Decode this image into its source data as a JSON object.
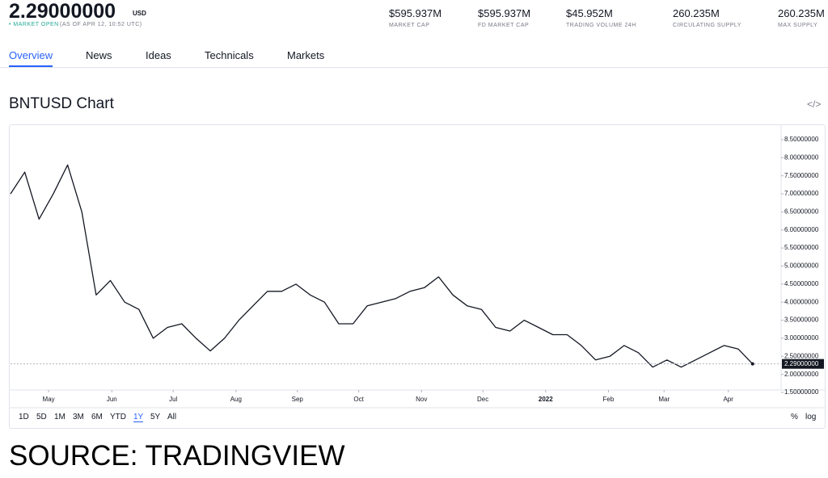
{
  "header": {
    "price": "2.29000000",
    "currency": "USD",
    "status": "• MARKET OPEN",
    "as_of": "(AS OF APR 12, 10:52 UTC)",
    "stats": [
      {
        "value": "$595.937M",
        "label": "MARKET CAP"
      },
      {
        "value": "$595.937M",
        "label": "FD MARKET CAP"
      },
      {
        "value": "$45.952M",
        "label": "TRADING VOLUME 24H"
      },
      {
        "value": "260.235M",
        "label": "CIRCULATING SUPPLY"
      },
      {
        "value": "260.235M",
        "label": "MAX SUPPLY"
      }
    ]
  },
  "tabs": [
    "Overview",
    "News",
    "Ideas",
    "Technicals",
    "Markets"
  ],
  "active_tab": "Overview",
  "embed_icon": "</>",
  "chart_data": {
    "type": "line",
    "title": "BNTUSD Chart",
    "color": "#131722",
    "values": [
      7.0,
      7.6,
      6.3,
      7.0,
      7.8,
      6.5,
      4.2,
      4.6,
      4.0,
      3.8,
      3.0,
      3.3,
      3.4,
      3.0,
      2.65,
      3.0,
      3.5,
      3.9,
      4.3,
      4.3,
      4.5,
      4.2,
      4.0,
      3.4,
      3.4,
      3.9,
      4.0,
      4.1,
      4.3,
      4.4,
      4.7,
      4.2,
      3.9,
      3.8,
      3.3,
      3.2,
      3.5,
      3.3,
      3.1,
      3.1,
      2.8,
      2.4,
      2.5,
      2.8,
      2.6,
      2.2,
      2.4,
      2.2,
      2.4,
      2.6,
      2.8,
      2.7,
      2.29
    ],
    "xlim": [
      0,
      54
    ],
    "xticks": [
      {
        "value": 2.67,
        "label": "May"
      },
      {
        "value": 7.1,
        "label": "Jun"
      },
      {
        "value": 11.4,
        "label": "Jul"
      },
      {
        "value": 15.8,
        "label": "Aug"
      },
      {
        "value": 20.1,
        "label": "Sep"
      },
      {
        "value": 24.4,
        "label": "Oct"
      },
      {
        "value": 28.8,
        "label": "Nov"
      },
      {
        "value": 33.1,
        "label": "Dec"
      },
      {
        "value": 37.5,
        "label": "2022"
      },
      {
        "value": 41.9,
        "label": "Feb"
      },
      {
        "value": 45.8,
        "label": "Mar"
      },
      {
        "value": 50.3,
        "label": "Apr"
      }
    ],
    "ylim": [
      1.5,
      8.88
    ],
    "yticks": [
      {
        "value": 1.5,
        "label": "1.50000000"
      },
      {
        "value": 2.0,
        "label": "2.00000000"
      },
      {
        "value": 2.5,
        "label": "2.50000000"
      },
      {
        "value": 3.0,
        "label": "3.00000000"
      },
      {
        "value": 3.5,
        "label": "3.50000000"
      },
      {
        "value": 4.0,
        "label": "4.00000000"
      },
      {
        "value": 4.5,
        "label": "4.50000000"
      },
      {
        "value": 5.0,
        "label": "5.00000000"
      },
      {
        "value": 5.5,
        "label": "5.50000000"
      },
      {
        "value": 6.0,
        "label": "6.00000000"
      },
      {
        "value": 6.5,
        "label": "6.50000000"
      },
      {
        "value": 7.0,
        "label": "7.00000000"
      },
      {
        "value": 7.5,
        "label": "7.50000000"
      },
      {
        "value": 8.0,
        "label": "8.00000000"
      },
      {
        "value": 8.5,
        "label": "8.50000000"
      }
    ],
    "last_value": {
      "value": 2.29,
      "label": "2.29000000"
    }
  },
  "ranges": [
    "1D",
    "5D",
    "1M",
    "3M",
    "6M",
    "YTD",
    "1Y",
    "5Y",
    "All"
  ],
  "active_range": "1Y",
  "scale_options": [
    "%",
    "log"
  ],
  "source": "SOURCE: TRADINGVIEW"
}
